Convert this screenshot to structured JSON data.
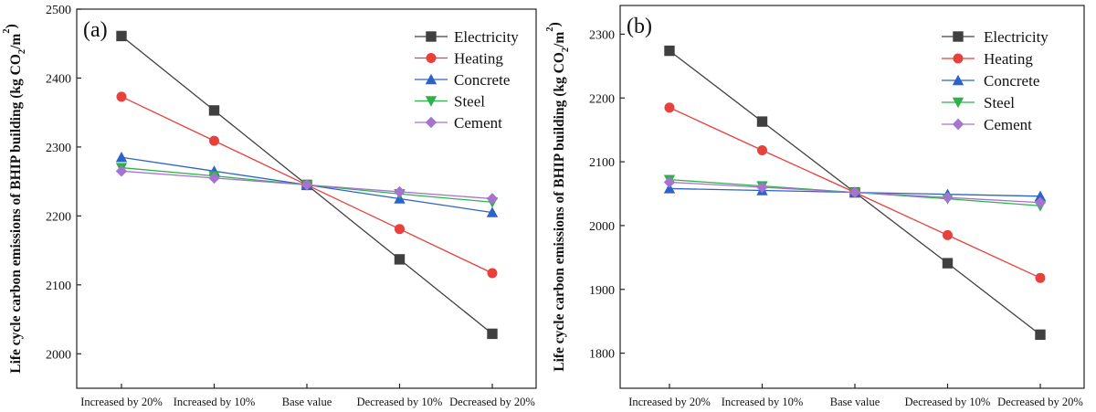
{
  "chart_data": [
    {
      "type": "line",
      "panel_label": "(a)",
      "ylabel_prefix": "Life cycle carbon emissions of BHIP building (kg CO",
      "ylabel_sub": "2",
      "ylabel_mid": "/m",
      "ylabel_sup": "2",
      "ylabel_suffix": ")",
      "categories": [
        "Increased by 20%",
        "Increased by 10%",
        "Base value",
        "Decreased by 10%",
        "Decreased by 20%"
      ],
      "ylim": [
        1950,
        2500
      ],
      "yticks": [
        2000,
        2100,
        2200,
        2300,
        2400,
        2500
      ],
      "legend_position": "top-right",
      "series": [
        {
          "name": "Electricity",
          "color": "#404040",
          "marker": "square",
          "values": [
            2461,
            2353,
            2245,
            2137,
            2029
          ]
        },
        {
          "name": "Heating",
          "color": "#e8403a",
          "marker": "circle",
          "values": [
            2373,
            2309,
            2245,
            2181,
            2117
          ]
        },
        {
          "name": "Concrete",
          "color": "#2c63c8",
          "marker": "triangle-up",
          "values": [
            2285,
            2265,
            2245,
            2225,
            2205
          ]
        },
        {
          "name": "Steel",
          "color": "#2fb14a",
          "marker": "triangle-down",
          "values": [
            2270,
            2258,
            2245,
            2232,
            2220
          ]
        },
        {
          "name": "Cement",
          "color": "#a573d0",
          "marker": "diamond",
          "values": [
            2265,
            2255,
            2245,
            2235,
            2225
          ]
        }
      ]
    },
    {
      "type": "line",
      "panel_label": "(b)",
      "ylabel_prefix": "Life cycle carbon emissions of BHIP building (kg CO",
      "ylabel_sub": "2",
      "ylabel_mid": "/m",
      "ylabel_sup": "2",
      "ylabel_suffix": ")",
      "categories": [
        "Increased by 20%",
        "Increased by 10%",
        "Base value",
        "Decreased by 10%",
        "Decreased by 20%"
      ],
      "ylim": [
        1745,
        2345
      ],
      "yticks": [
        1800,
        1900,
        2000,
        2100,
        2200,
        2300
      ],
      "legend_position": "top-right",
      "series": [
        {
          "name": "Electricity",
          "color": "#404040",
          "marker": "square",
          "values": [
            2274,
            2163,
            2052,
            1941,
            1829
          ]
        },
        {
          "name": "Heating",
          "color": "#e8403a",
          "marker": "circle",
          "values": [
            2185,
            2118,
            2052,
            1985,
            1918
          ]
        },
        {
          "name": "Concrete",
          "color": "#2c63c8",
          "marker": "triangle-up",
          "values": [
            2058,
            2055,
            2052,
            2049,
            2046
          ]
        },
        {
          "name": "Steel",
          "color": "#2fb14a",
          "marker": "triangle-down",
          "values": [
            2072,
            2062,
            2052,
            2042,
            2031
          ]
        },
        {
          "name": "Cement",
          "color": "#a573d0",
          "marker": "diamond",
          "values": [
            2068,
            2060,
            2052,
            2044,
            2036
          ]
        }
      ]
    }
  ]
}
